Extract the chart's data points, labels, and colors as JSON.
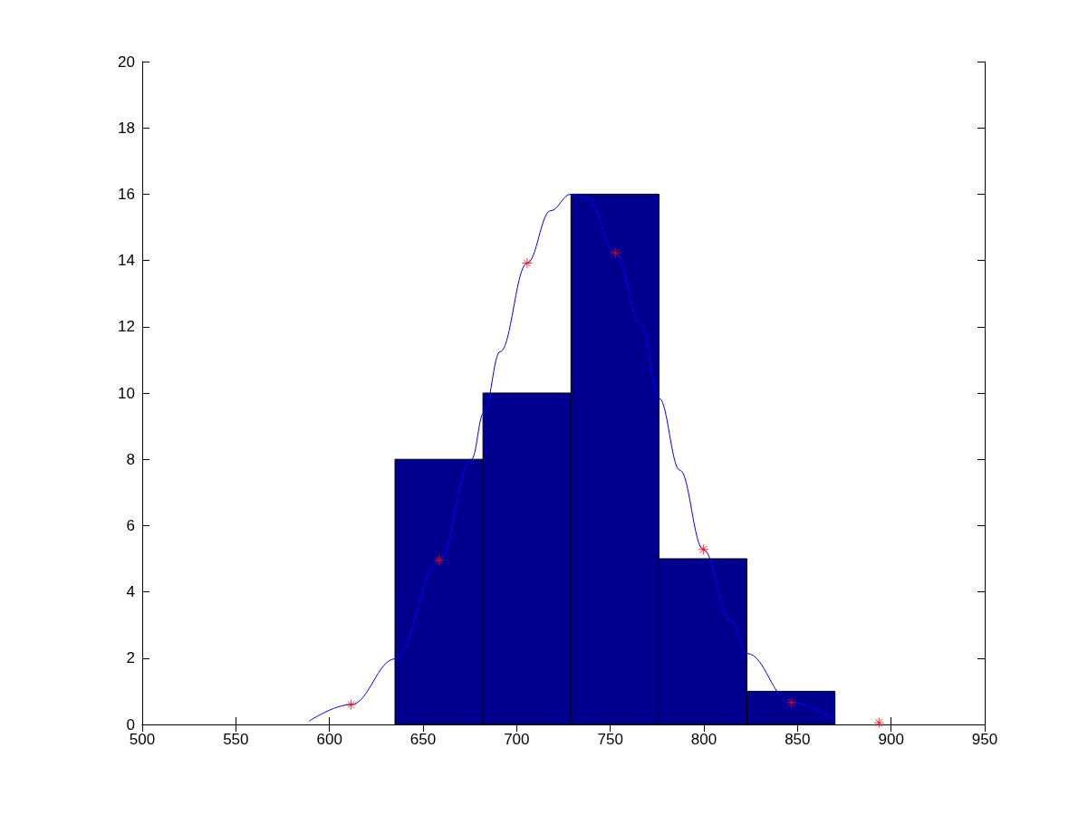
{
  "chart_data": {
    "type": "histogram",
    "bins": [
      635,
      682,
      729,
      776,
      823,
      870
    ],
    "values": [
      8,
      10,
      16,
      5,
      1
    ],
    "color": "#00008f",
    "xlim": [
      500,
      950
    ],
    "xticks": [
      500,
      550,
      600,
      650,
      700,
      750,
      800,
      850,
      900,
      950
    ],
    "ylim": [
      0,
      20
    ],
    "yticks": [
      0,
      2,
      4,
      6,
      8,
      10,
      12,
      14,
      16,
      18,
      20
    ],
    "series": [
      {
        "type": "line",
        "color": "#0000ff",
        "marker": "none",
        "x": [
          589.1,
          611.5,
          635.2,
          658.6,
          675.9,
          682.4,
          691.2,
          705.6,
          718.1,
          728.9,
          737.3,
          752.7,
          766.1,
          776.1,
          787.2,
          799.7,
          814.1,
          823.1,
          846.7,
          870.3
        ],
        "values": [
          0.1,
          0.6,
          1.98,
          4.96,
          8.0,
          9.4,
          11.25,
          13.92,
          15.5,
          16.0,
          15.9,
          14.23,
          12.1,
          9.84,
          7.67,
          5.28,
          3.12,
          2.14,
          0.66,
          0.1
        ]
      },
      {
        "type": "scatter",
        "color": "#ff0000",
        "marker": "cross",
        "x": [
          611.5,
          658.6,
          705.6,
          752.7,
          799.7,
          846.8,
          893.5
        ],
        "values": [
          0.6,
          4.96,
          13.92,
          14.23,
          5.28,
          0.66,
          0.05
        ]
      }
    ]
  }
}
